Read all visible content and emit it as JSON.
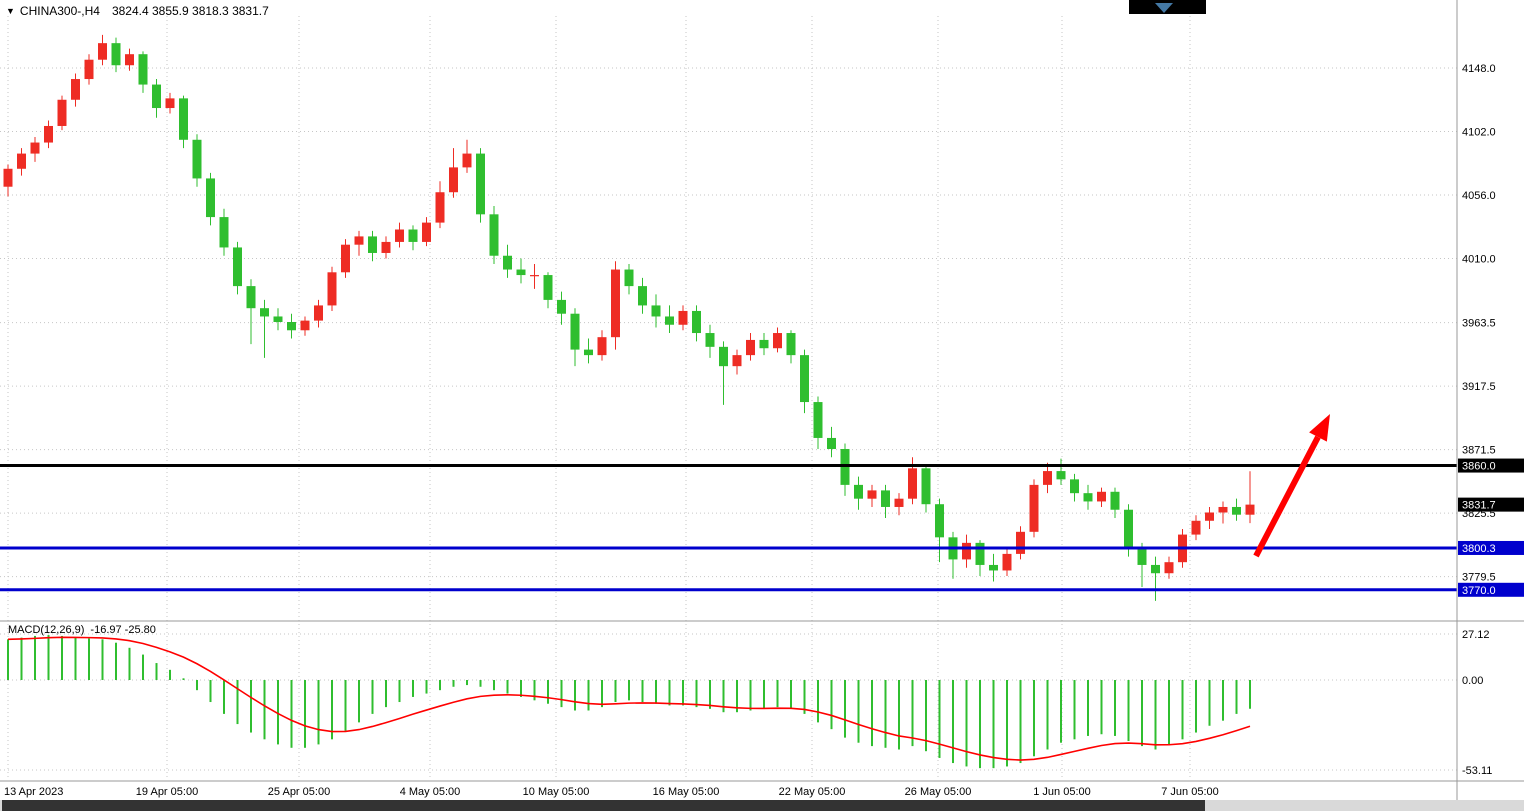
{
  "header": {
    "symbol": "CHINA300-,H4",
    "ohlc": "3824.4 3855.9 3818.3 3831.7"
  },
  "macd_header": {
    "name": "MACD(12,26,9)",
    "values": "-16.97 -25.80"
  },
  "chart_data": {
    "type": "candlestick",
    "symbol": "CHINA300-",
    "timeframe": "H4",
    "last_bar": {
      "open": 3824.4,
      "high": 3855.9,
      "low": 3818.3,
      "close": 3831.7
    },
    "colors": {
      "up": "#ee2c24",
      "down": "#2fbe2f",
      "grid": "#c6c6c6",
      "separator": "#999999",
      "signal": "#ff0000",
      "arrow": "#ff0000",
      "level_blue": "#0000cd",
      "level_black": "#000000",
      "axis_text": "#000000"
    },
    "price_axis_ticks": [
      {
        "value": 4148.0,
        "label": "4148.0"
      },
      {
        "value": 4102.0,
        "label": "4102.0"
      },
      {
        "value": 4056.0,
        "label": "4056.0"
      },
      {
        "value": 4010.0,
        "label": "4010.0"
      },
      {
        "value": 3963.5,
        "label": "3963.5"
      },
      {
        "value": 3917.5,
        "label": "3917.5"
      },
      {
        "value": 3871.5,
        "label": "3871.5"
      },
      {
        "value": 3825.5,
        "label": "3825.5"
      },
      {
        "value": 3779.5,
        "label": "3779.5"
      }
    ],
    "time_axis_ticks": [
      "13 Apr 2023",
      "19 Apr 05:00",
      "25 Apr 05:00",
      "4 May 05:00",
      "10 May 05:00",
      "16 May 05:00",
      "22 May 05:00",
      "26 May 05:00",
      "1 Jun 05:00",
      "7 Jun 05:00"
    ],
    "levels": [
      {
        "value": 3860.0,
        "label": "3860.0",
        "color": "#000000",
        "line": true,
        "name": "resistance-line-3860"
      },
      {
        "value": 3831.7,
        "label": "3831.7",
        "color": "#000000",
        "line": false,
        "name": "last-price-tag"
      },
      {
        "value": 3800.3,
        "label": "3800.3",
        "color": "#0000cd",
        "line": true,
        "name": "support-line-3800"
      },
      {
        "value": 3770.0,
        "label": "3770.0",
        "color": "#0000cd",
        "line": true,
        "name": "support-line-3770"
      }
    ],
    "candles": [
      [
        4062,
        4078,
        4055,
        4075
      ],
      [
        4075,
        4090,
        4070,
        4086
      ],
      [
        4086,
        4098,
        4080,
        4094
      ],
      [
        4094,
        4110,
        4090,
        4106
      ],
      [
        4106,
        4128,
        4103,
        4125
      ],
      [
        4125,
        4144,
        4120,
        4140
      ],
      [
        4140,
        4158,
        4136,
        4154
      ],
      [
        4154,
        4172,
        4150,
        4166
      ],
      [
        4166,
        4170,
        4145,
        4150
      ],
      [
        4150,
        4162,
        4146,
        4158
      ],
      [
        4158,
        4160,
        4130,
        4136
      ],
      [
        4136,
        4140,
        4112,
        4119
      ],
      [
        4119,
        4130,
        4115,
        4126
      ],
      [
        4126,
        4128,
        4090,
        4096
      ],
      [
        4096,
        4100,
        4062,
        4068
      ],
      [
        4068,
        4072,
        4034,
        4040
      ],
      [
        4040,
        4046,
        4012,
        4018
      ],
      [
        4018,
        4022,
        3984,
        3990
      ],
      [
        3990,
        3995,
        3948,
        3974
      ],
      [
        3974,
        3980,
        3938,
        3968
      ],
      [
        3968,
        3974,
        3958,
        3964
      ],
      [
        3964,
        3970,
        3952,
        3958
      ],
      [
        3958,
        3968,
        3954,
        3965
      ],
      [
        3965,
        3980,
        3960,
        3976
      ],
      [
        3976,
        4004,
        3972,
        4000
      ],
      [
        4000,
        4024,
        3996,
        4020
      ],
      [
        4020,
        4030,
        4012,
        4026
      ],
      [
        4026,
        4030,
        4008,
        4014
      ],
      [
        4014,
        4026,
        4010,
        4022
      ],
      [
        4022,
        4036,
        4018,
        4031
      ],
      [
        4031,
        4034,
        4016,
        4022
      ],
      [
        4022,
        4040,
        4019,
        4036
      ],
      [
        4036,
        4066,
        4032,
        4058
      ],
      [
        4058,
        4090,
        4054,
        4076
      ],
      [
        4076,
        4096,
        4072,
        4086
      ],
      [
        4086,
        4090,
        4036,
        4042
      ],
      [
        4042,
        4048,
        4006,
        4012
      ],
      [
        4012,
        4020,
        3996,
        4002
      ],
      [
        4002,
        4010,
        3992,
        3998
      ],
      [
        3998,
        4006,
        3988,
        3998
      ],
      [
        3998,
        4000,
        3974,
        3980
      ],
      [
        3980,
        3986,
        3962,
        3970
      ],
      [
        3970,
        3974,
        3932,
        3944
      ],
      [
        3944,
        3952,
        3934,
        3940
      ],
      [
        3940,
        3958,
        3936,
        3953
      ],
      [
        3953,
        4008,
        3944,
        4002
      ],
      [
        4002,
        4006,
        3984,
        3990
      ],
      [
        3990,
        3996,
        3970,
        3976
      ],
      [
        3976,
        3984,
        3960,
        3968
      ],
      [
        3968,
        3976,
        3956,
        3962
      ],
      [
        3962,
        3976,
        3958,
        3972
      ],
      [
        3972,
        3976,
        3950,
        3956
      ],
      [
        3956,
        3962,
        3938,
        3946
      ],
      [
        3946,
        3950,
        3904,
        3932
      ],
      [
        3932,
        3944,
        3926,
        3940
      ],
      [
        3940,
        3956,
        3936,
        3951
      ],
      [
        3951,
        3956,
        3940,
        3945
      ],
      [
        3945,
        3960,
        3942,
        3956
      ],
      [
        3956,
        3958,
        3934,
        3940
      ],
      [
        3940,
        3944,
        3898,
        3906
      ],
      [
        3906,
        3910,
        3872,
        3880
      ],
      [
        3880,
        3888,
        3866,
        3872
      ],
      [
        3872,
        3876,
        3838,
        3846
      ],
      [
        3846,
        3852,
        3828,
        3836
      ],
      [
        3836,
        3846,
        3830,
        3842
      ],
      [
        3842,
        3846,
        3822,
        3830
      ],
      [
        3830,
        3840,
        3824,
        3836
      ],
      [
        3836,
        3866,
        3832,
        3858
      ],
      [
        3858,
        3860,
        3826,
        3832
      ],
      [
        3832,
        3836,
        3790,
        3808
      ],
      [
        3808,
        3812,
        3778,
        3792
      ],
      [
        3792,
        3810,
        3786,
        3804
      ],
      [
        3804,
        3806,
        3780,
        3788
      ],
      [
        3788,
        3796,
        3776,
        3784
      ],
      [
        3784,
        3800,
        3780,
        3796
      ],
      [
        3796,
        3816,
        3792,
        3812
      ],
      [
        3812,
        3850,
        3808,
        3846
      ],
      [
        3846,
        3862,
        3840,
        3856
      ],
      [
        3856,
        3865,
        3846,
        3850
      ],
      [
        3850,
        3854,
        3834,
        3840
      ],
      [
        3840,
        3846,
        3828,
        3834
      ],
      [
        3834,
        3844,
        3830,
        3841
      ],
      [
        3841,
        3844,
        3822,
        3828
      ],
      [
        3828,
        3832,
        3794,
        3800
      ],
      [
        3800,
        3804,
        3772,
        3788
      ],
      [
        3788,
        3794,
        3762,
        3782
      ],
      [
        3782,
        3794,
        3778,
        3790
      ],
      [
        3790,
        3814,
        3786,
        3810
      ],
      [
        3810,
        3824,
        3806,
        3820
      ],
      [
        3820,
        3830,
        3814,
        3826
      ],
      [
        3826,
        3834,
        3818,
        3830
      ],
      [
        3830,
        3836,
        3820,
        3824.4
      ],
      [
        3824.4,
        3855.9,
        3818.3,
        3831.7
      ]
    ],
    "macd": {
      "params": "12,26,9",
      "main_last": -16.97,
      "signal_last": -25.8,
      "axis_ticks": [
        {
          "value": 27.12,
          "label": "27.12"
        },
        {
          "value": 0,
          "label": "0.00"
        },
        {
          "value": -53.11,
          "label": "-53.11"
        }
      ],
      "histogram": [
        24,
        25,
        26,
        26.5,
        26,
        25,
        24.5,
        24,
        22,
        19,
        15,
        10,
        6,
        1,
        -6,
        -13,
        -20,
        -26,
        -31,
        -35,
        -38,
        -40,
        -40,
        -38,
        -35,
        -30,
        -25,
        -20,
        -16,
        -13,
        -10,
        -8,
        -6,
        -4,
        -3,
        -4,
        -6,
        -8,
        -10,
        -12,
        -14,
        -16,
        -18,
        -18,
        -16,
        -13,
        -12,
        -13,
        -14,
        -15,
        -15,
        -16,
        -17,
        -19,
        -19,
        -18,
        -17,
        -16,
        -17,
        -20,
        -25,
        -29,
        -34,
        -37,
        -39,
        -40,
        -41,
        -39,
        -42,
        -46,
        -49,
        -51,
        -52,
        -52,
        -51,
        -49,
        -45,
        -41,
        -37,
        -35,
        -33,
        -32,
        -33,
        -36,
        -39,
        -41,
        -38,
        -35,
        -31,
        -27,
        -24,
        -20,
        -16.97
      ]
    },
    "annotation_arrow": {
      "direction": "up",
      "color": "#ff0000"
    }
  }
}
